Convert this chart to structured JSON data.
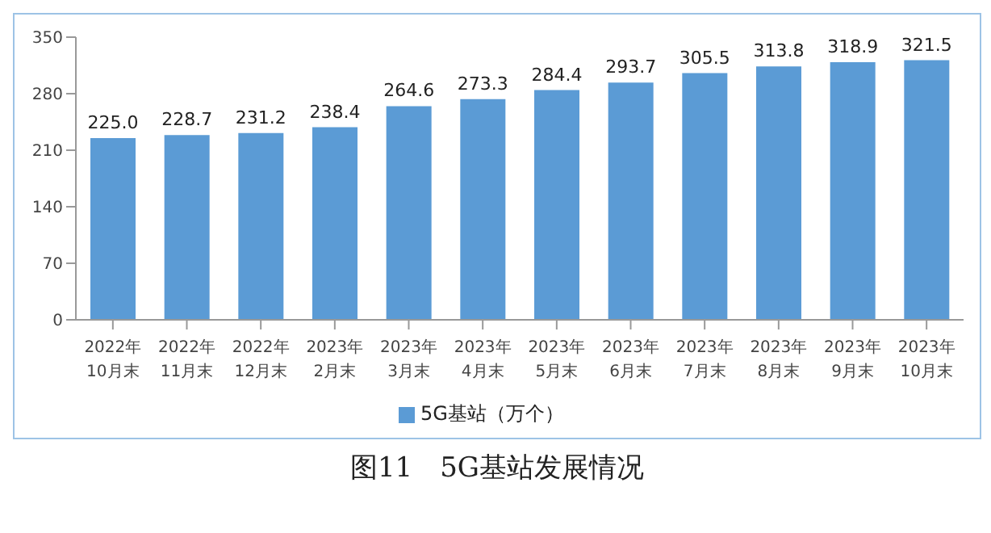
{
  "chart_data": {
    "type": "bar",
    "title": "图11　5G基站发展情况",
    "categories": [
      "2022年\n10月末",
      "2022年\n11月末",
      "2022年\n12月末",
      "2023年\n2月末",
      "2023年\n3月末",
      "2023年\n4月末",
      "2023年\n5月末",
      "2023年\n6月末",
      "2023年\n7月末",
      "2023年\n8月末",
      "2023年\n9月末",
      "2023年\n10月末"
    ],
    "series": [
      {
        "name": "5G基站（万个）",
        "color": "#5b9bd5",
        "values": [
          225.0,
          228.7,
          231.2,
          238.4,
          264.6,
          273.3,
          284.4,
          293.7,
          305.5,
          313.8,
          318.9,
          321.5
        ]
      }
    ],
    "value_labels": [
      "225.0",
      "228.7",
      "231.2",
      "238.4",
      "264.6",
      "273.3",
      "284.4",
      "293.7",
      "305.5",
      "313.8",
      "318.9",
      "321.5"
    ],
    "ylim": [
      0,
      350
    ],
    "yticks": [
      0,
      70,
      140,
      210,
      280,
      350
    ],
    "grid": false,
    "legend": "bottom"
  }
}
